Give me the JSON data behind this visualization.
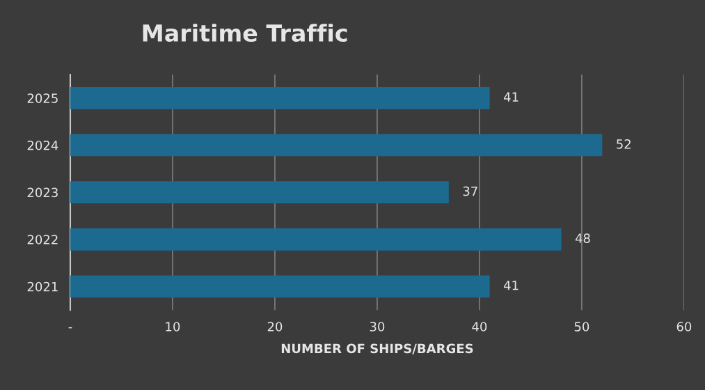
{
  "chart_data": {
    "type": "bar",
    "orientation": "horizontal",
    "title": "Maritime Traffic",
    "xlabel": "NUMBER OF SHIPS/BARGES",
    "categories": [
      "2025",
      "2024",
      "2023",
      "2022",
      "2021"
    ],
    "values": [
      41,
      52,
      37,
      48,
      41
    ],
    "color": "#1d6a90",
    "xlim": [
      0,
      60
    ],
    "xticks": [
      {
        "value": 0,
        "label": "-"
      },
      10,
      20,
      30,
      40,
      50,
      60
    ],
    "grid": "x",
    "data_labels": true
  }
}
